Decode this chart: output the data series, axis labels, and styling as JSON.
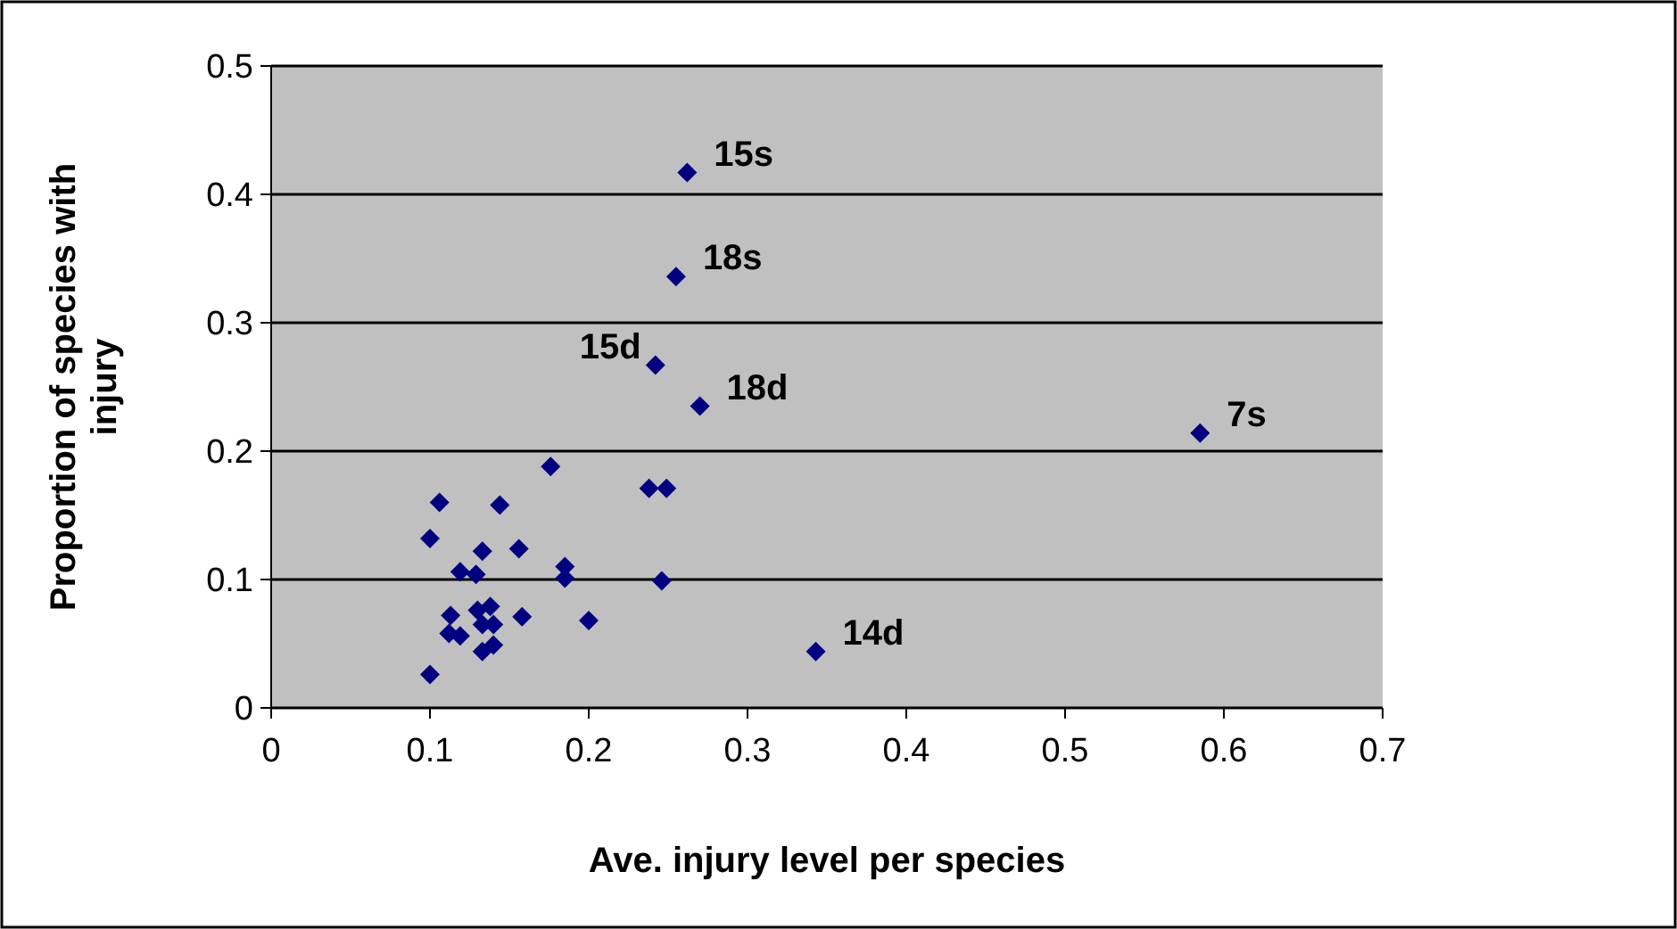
{
  "chart_data": {
    "type": "scatter",
    "xlabel": "Ave. injury level per species",
    "ylabel": "Proportion of species with injury",
    "x": [
      0.262,
      0.255,
      0.242,
      0.27,
      0.585,
      0.343,
      0.176,
      0.106,
      0.144,
      0.238,
      0.249,
      0.1,
      0.133,
      0.156,
      0.119,
      0.129,
      0.185,
      0.185,
      0.246,
      0.113,
      0.13,
      0.138,
      0.158,
      0.2,
      0.112,
      0.119,
      0.133,
      0.14,
      0.133,
      0.14,
      0.1
    ],
    "series": [
      {
        "color": "#000080",
        "values": [
          0.417,
          0.336,
          0.267,
          0.235,
          0.214,
          0.044,
          0.188,
          0.16,
          0.158,
          0.171,
          0.171,
          0.132,
          0.122,
          0.124,
          0.106,
          0.104,
          0.11,
          0.101,
          0.099,
          0.072,
          0.076,
          0.079,
          0.071,
          0.068,
          0.058,
          0.056,
          0.065,
          0.065,
          0.044,
          0.049,
          0.026
        ]
      }
    ],
    "annotations": [
      {
        "text": "15s",
        "x": 0.262,
        "y": 0.417
      },
      {
        "text": "18s",
        "x": 0.255,
        "y": 0.336
      },
      {
        "text": "15d",
        "x": 0.242,
        "y": 0.267
      },
      {
        "text": "18d",
        "x": 0.27,
        "y": 0.235
      },
      {
        "text": "7s",
        "x": 0.585,
        "y": 0.214
      },
      {
        "text": "14d",
        "x": 0.343,
        "y": 0.044
      }
    ],
    "xlim": [
      0,
      0.7
    ],
    "xticks": [
      0,
      0.1,
      0.2,
      0.3,
      0.4,
      0.5,
      0.6,
      0.7
    ],
    "ylim": [
      0,
      0.5
    ],
    "yticks": [
      0,
      0.1,
      0.2,
      0.3,
      0.4,
      0.5
    ],
    "grid": "y",
    "marker": "diamond"
  }
}
